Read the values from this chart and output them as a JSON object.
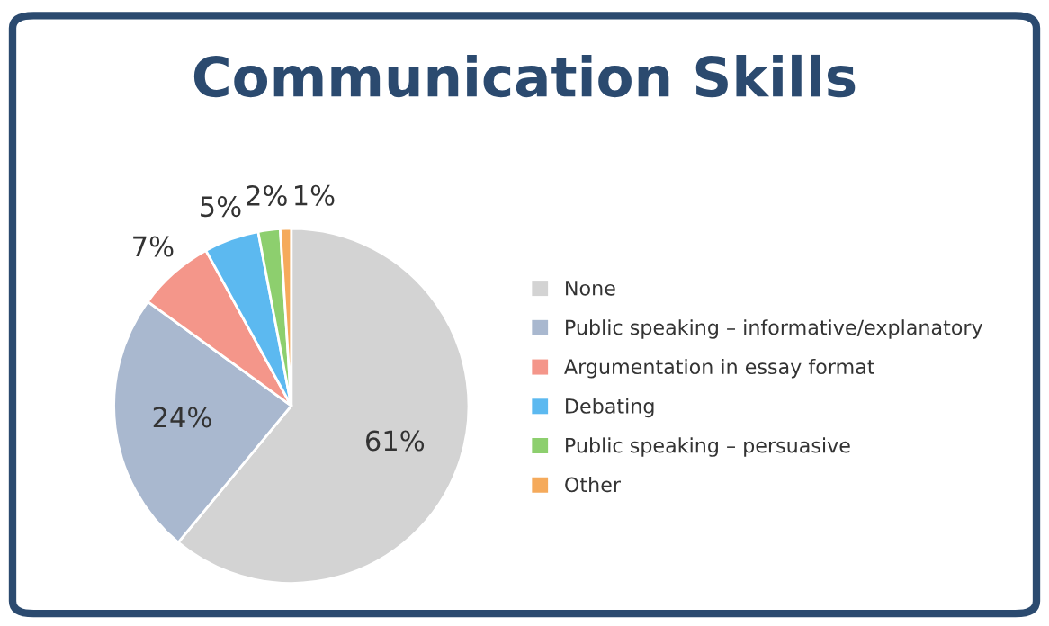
{
  "chart_data": {
    "type": "pie",
    "title": "Communication Skills",
    "categories": [
      "None",
      "Public speaking – informative/explanatory",
      "Argumentation in essay format",
      "Debating",
      "Public speaking – persuasive",
      "Other"
    ],
    "values": [
      61,
      24,
      7,
      5,
      2,
      1
    ],
    "colors": [
      "#d3d3d3",
      "#a9b8cf",
      "#f4968a",
      "#5cb9f0",
      "#8dcf6e",
      "#f5aa5b"
    ],
    "value_labels": [
      "61%",
      "24%",
      "7%",
      "5%",
      "2%",
      "1%"
    ],
    "legend": "right"
  }
}
